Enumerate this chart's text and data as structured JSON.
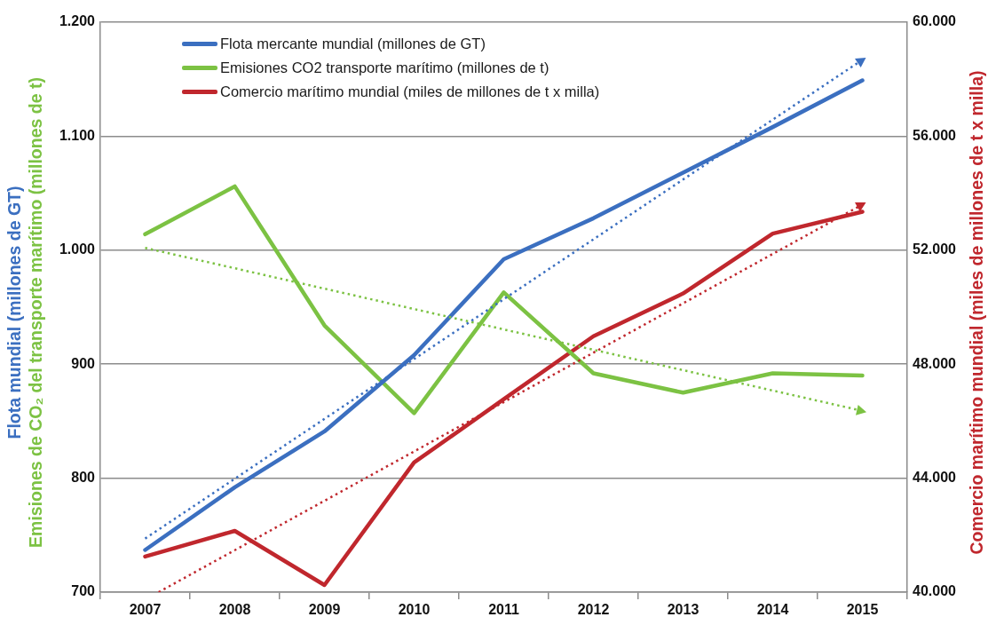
{
  "chart_data": {
    "type": "line",
    "x": [
      2007,
      2008,
      2009,
      2010,
      2011,
      2012,
      2013,
      2014,
      2015
    ],
    "xlim": [
      2006.5,
      2015.5
    ],
    "xticks": [
      {
        "value": 2006.5,
        "label": null
      },
      2007,
      {
        "value": 2007.5,
        "label": null
      },
      2008,
      {
        "value": 2008.5,
        "label": null
      },
      2009,
      {
        "value": 2009.5,
        "label": null
      },
      2010,
      {
        "value": 2010.5,
        "label": null
      },
      2011,
      {
        "value": 2011.5,
        "label": null
      },
      2012,
      {
        "value": 2012.5,
        "label": null
      },
      2013,
      {
        "value": 2013.5,
        "label": null
      },
      2014,
      {
        "value": 2014.5,
        "label": null
      },
      2015,
      {
        "value": 2015.5,
        "label": null
      }
    ],
    "ylabel": "Flota mundial (millones de GT)\nEmisiones de CO₂ del transporte marítimo (millones de t)",
    "y2label": "Comercio marítimo mundial (miles de millones de t x milla)",
    "ylim": [
      700,
      1200
    ],
    "yticks": [
      700,
      800,
      900,
      {
        "value": 1000,
        "label": "1.000"
      },
      {
        "value": 1100,
        "label": "1.100"
      },
      {
        "value": 1200,
        "label": "1.200"
      }
    ],
    "y2lim": [
      40000,
      60000
    ],
    "y2ticks": [
      {
        "value": 40000,
        "label": "40.000"
      },
      {
        "value": 44000,
        "label": "44.000"
      },
      {
        "value": 48000,
        "label": "48.000"
      },
      {
        "value": 52000,
        "label": "52.000"
      },
      {
        "value": 56000,
        "label": "56.000"
      },
      {
        "value": 60000,
        "label": "60.000"
      }
    ],
    "grid": "y",
    "legend": "top left",
    "series": [
      {
        "name": "Flota mercante mundial (millones de GT)",
        "color": "#3b6fc0",
        "values": [
          737,
          792,
          841,
          908,
          992,
          1028,
          1068,
          1108,
          1149
        ]
      },
      {
        "name": "Emisiones CO2 transporte marítimo (millones de t)",
        "color": "#7cc243",
        "values": [
          1014,
          1056,
          934,
          857,
          963,
          892,
          875,
          892,
          890
        ]
      },
      {
        "name": "Comercio marítimo mundial (miles de millones de t x milla)",
        "color": "#c0272d",
        "axis": "y2",
        "values": [
          41250,
          42150,
          40250,
          44550,
          46770,
          48980,
          50480,
          52580,
          53350
        ]
      },
      {
        "color": "#3b6fc0",
        "x": [
          2007,
          2015
        ],
        "values": [
          747,
          1167
        ],
        "line_style": "dotted"
      },
      {
        "color": "#7cc243",
        "x": [
          2007,
          2015
        ],
        "values": [
          1002,
          859
        ],
        "line_style": "dotted"
      },
      {
        "color": "#c0272d",
        "axis": "y2",
        "x": [
          2007.15,
          2015
        ],
        "values": [
          40000,
          53600
        ],
        "line_style": "dotted"
      }
    ]
  }
}
